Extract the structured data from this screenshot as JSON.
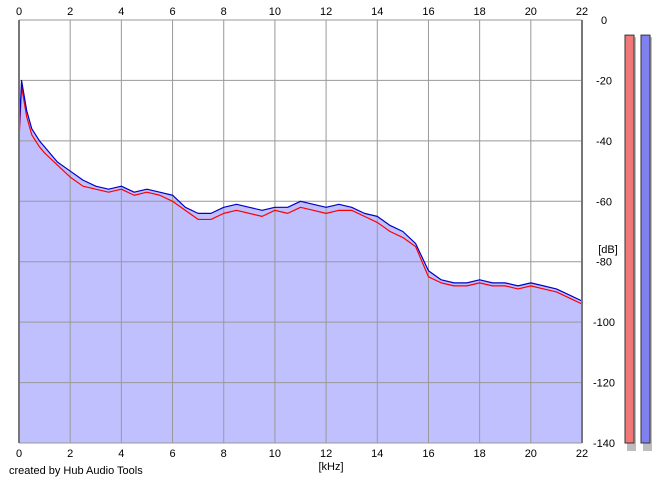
{
  "footer": {
    "credit": "created by Hub Audio Tools"
  },
  "colors": {
    "background": "#ffffff",
    "plot_fill": "#c0c0ff",
    "grid": "#999999",
    "channel_left": "#ff0000",
    "channel_right": "#0000c8",
    "meter_left": "#f07878",
    "meter_right": "#8080f0"
  },
  "chart_data": {
    "type": "area",
    "xlabel": "[kHz]",
    "ylabel": "[dB]",
    "xlim": [
      0,
      22
    ],
    "ylim": [
      -140,
      0
    ],
    "x_ticks": [
      "0",
      "2",
      "4",
      "6",
      "8",
      "10",
      "12",
      "14",
      "16",
      "18",
      "20",
      "22"
    ],
    "y_ticks": [
      "0",
      "-20",
      "-40",
      "-60",
      "-80",
      "-100",
      "-120",
      "-140"
    ],
    "grid": true,
    "series": [
      {
        "color": "#ff0000",
        "x": [
          0,
          0.1,
          0.3,
          0.5,
          0.8,
          1.0,
          1.5,
          2.0,
          2.5,
          3.0,
          3.5,
          4.0,
          4.5,
          5.0,
          5.5,
          6.0,
          6.5,
          7.0,
          7.5,
          8.0,
          8.5,
          9.0,
          9.5,
          10.0,
          10.5,
          11.0,
          11.5,
          12.0,
          12.5,
          13.0,
          13.5,
          14.0,
          14.5,
          15.0,
          15.5,
          16.0,
          16.5,
          17.0,
          17.5,
          18.0,
          18.5,
          19.0,
          19.5,
          20.0,
          20.5,
          21.0,
          21.5,
          22.0
        ],
        "values": [
          -40,
          -22,
          -32,
          -38,
          -42,
          -44,
          -48,
          -52,
          -55,
          -56,
          -57,
          -56,
          -58,
          -57,
          -58,
          -60,
          -63,
          -66,
          -66,
          -64,
          -63,
          -64,
          -65,
          -63,
          -64,
          -62,
          -63,
          -64,
          -63,
          -63,
          -65,
          -67,
          -70,
          -72,
          -75,
          -85,
          -87,
          -88,
          -88,
          -87,
          -88,
          -88,
          -89,
          -88,
          -89,
          -90,
          -92,
          -94
        ]
      },
      {
        "color": "#0000c8",
        "x": [
          0,
          0.1,
          0.3,
          0.5,
          0.8,
          1.0,
          1.5,
          2.0,
          2.5,
          3.0,
          3.5,
          4.0,
          4.5,
          5.0,
          5.5,
          6.0,
          6.5,
          7.0,
          7.5,
          8.0,
          8.5,
          9.0,
          9.5,
          10.0,
          10.5,
          11.0,
          11.5,
          12.0,
          12.5,
          13.0,
          13.5,
          14.0,
          14.5,
          15.0,
          15.5,
          16.0,
          16.5,
          17.0,
          17.5,
          18.0,
          18.5,
          19.0,
          19.5,
          20.0,
          20.5,
          21.0,
          21.5,
          22.0
        ],
        "values": [
          -38,
          -20,
          -30,
          -36,
          -40,
          -42,
          -47,
          -50,
          -53,
          -55,
          -56,
          -55,
          -57,
          -56,
          -57,
          -58,
          -62,
          -64,
          -64,
          -62,
          -61,
          -62,
          -63,
          -62,
          -62,
          -60,
          -61,
          -62,
          -61,
          -62,
          -64,
          -65,
          -68,
          -70,
          -74,
          -83,
          -86,
          -87,
          -87,
          -86,
          -87,
          -87,
          -88,
          -87,
          -88,
          -89,
          -91,
          -93
        ]
      }
    ],
    "level_meters": [
      {
        "color": "#f07878",
        "top_db": -5,
        "bottom_db": -140
      },
      {
        "color": "#8080f0",
        "top_db": -5,
        "bottom_db": -140
      }
    ]
  }
}
